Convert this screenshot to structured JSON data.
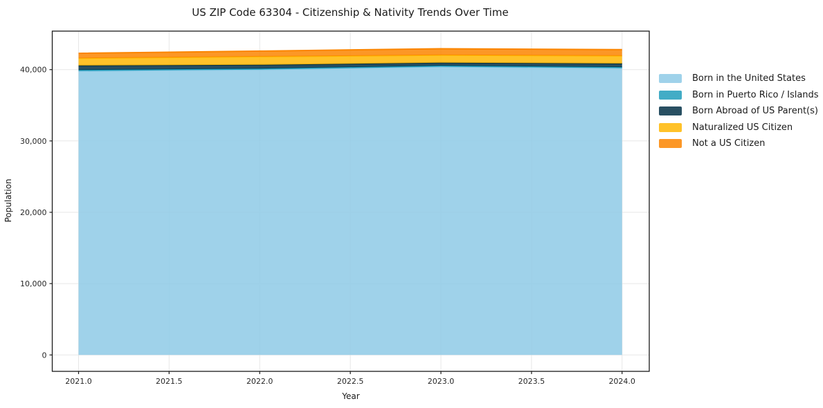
{
  "chart_data": {
    "type": "area",
    "stacked": true,
    "title": "US ZIP Code 63304 - Citizenship & Nativity Trends Over Time",
    "xlabel": "Year",
    "ylabel": "Population",
    "x": [
      2021,
      2022,
      2023,
      2024
    ],
    "series": [
      {
        "name": "Born in the United States",
        "color": "#8ecae6",
        "values": [
          39800,
          40000,
          40400,
          40200
        ]
      },
      {
        "name": "Born in Puerto Rico / Islands",
        "color": "#219ebc",
        "values": [
          150,
          150,
          150,
          150
        ]
      },
      {
        "name": "Born Abroad of US Parent(s)",
        "color": "#023047",
        "values": [
          620,
          520,
          420,
          500
        ]
      },
      {
        "name": "Naturalized US Citizen",
        "color": "#ffb703",
        "values": [
          1020,
          1150,
          1060,
          1080
        ]
      },
      {
        "name": "Not a US Citizen",
        "color": "#fb8500",
        "values": [
          700,
          780,
          900,
          870
        ]
      }
    ],
    "fill_alpha": 0.85,
    "edge_line_width": 2,
    "xlim": [
      2020.855,
      2024.15
    ],
    "ylim": [
      -2300,
      45400
    ],
    "x_ticks": {
      "values": [
        2021.0,
        2021.5,
        2022.0,
        2022.5,
        2023.0,
        2023.5,
        2024.0
      ],
      "labels": [
        "2021.0",
        "2021.5",
        "2022.0",
        "2022.5",
        "2023.0",
        "2023.5",
        "2024.0"
      ]
    },
    "y_ticks": {
      "values": [
        0,
        10000,
        20000,
        30000,
        40000
      ],
      "labels": [
        "0",
        "10,000",
        "20,000",
        "30,000",
        "40,000"
      ]
    },
    "grid": true,
    "legend_position": "right-outside, frameless"
  },
  "colors": {
    "background": "#ffffff",
    "grid": "#e7e7e7",
    "spine": "#1a1a1a",
    "tick_text": "#262626",
    "text": "#1a1a1a"
  }
}
